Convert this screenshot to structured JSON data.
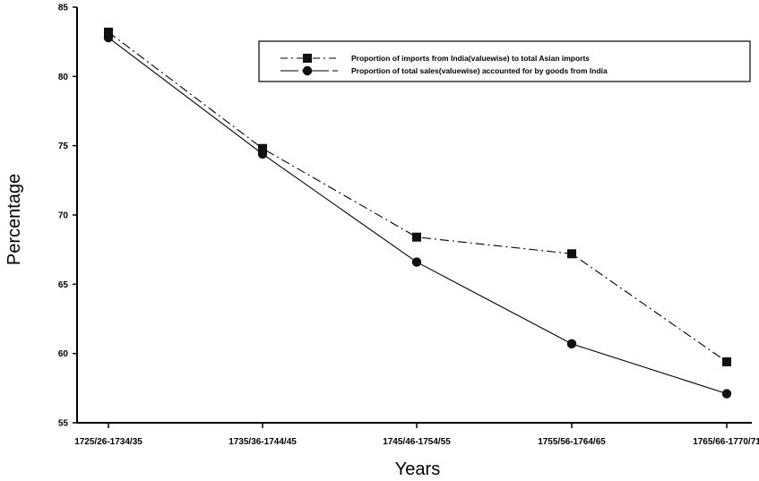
{
  "chart_data": {
    "type": "line",
    "title": "",
    "xlabel": "Years",
    "ylabel": "Percentage",
    "categories": [
      "1725/26-1734/35",
      "1735/36-1744/45",
      "1745/46-1754/55",
      "1755/56-1764/65",
      "1765/66-1770/71"
    ],
    "ylim": [
      55,
      85
    ],
    "yticks": [
      55,
      60,
      65,
      70,
      75,
      80,
      85
    ],
    "grid": false,
    "legend_position": "top-right",
    "series": [
      {
        "name": "Proportion of imports from India(valuewise) to total Asian imports",
        "marker": "square",
        "line_style": "dash-dot",
        "values": [
          83.2,
          74.8,
          68.4,
          67.2,
          59.4
        ]
      },
      {
        "name": "Proportion of total sales(valuewise) accounted for by goods from India",
        "marker": "circle",
        "line_style": "solid",
        "values": [
          82.8,
          74.4,
          66.6,
          60.7,
          57.1
        ]
      }
    ]
  }
}
